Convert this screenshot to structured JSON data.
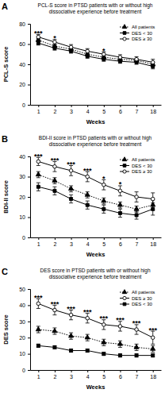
{
  "chart_data": [
    {
      "type": "line",
      "panel_label": "A",
      "title": "PCL-S score in PTSD patients with or without high dissociative experience before treatment",
      "x_label": "Weeks",
      "y_label": "PCL-S score",
      "categories": [
        "1",
        "2",
        "3",
        "4",
        "5",
        "6",
        "7",
        "18"
      ],
      "ylim": [
        0,
        80
      ],
      "yticks": [
        0,
        20,
        40,
        60,
        80
      ],
      "legend": "top-right",
      "series": [
        {
          "name": "All patients",
          "color": "#000000",
          "marker": "triangle",
          "line_style": "dotted",
          "values": [
            64,
            58,
            55,
            50,
            47,
            45,
            44,
            40
          ],
          "errors": [
            1.5,
            1.5,
            1.5,
            1.5,
            1.5,
            1.5,
            1.5,
            2
          ]
        },
        {
          "name": "DES < 30",
          "color": "#000000",
          "marker": "square",
          "line_style": "solid",
          "values": [
            61,
            56,
            53,
            48,
            45,
            43,
            42,
            38
          ],
          "errors": [
            2,
            2,
            2,
            2,
            2,
            2,
            2,
            2.5
          ]
        },
        {
          "name": "DES ≥ 30",
          "color": "#000000",
          "marker": "circle-open",
          "line_style": "solid",
          "values": [
            67,
            62,
            57,
            53,
            50,
            47,
            45,
            42
          ],
          "errors": [
            2.5,
            2.5,
            2.5,
            2.5,
            2.5,
            2.5,
            2.5,
            3
          ]
        }
      ],
      "annotations": [
        {
          "x": "1",
          "text": "***"
        },
        {
          "x": "2",
          "text": "*"
        },
        {
          "x": "5",
          "text": "*"
        }
      ]
    },
    {
      "type": "line",
      "panel_label": "B",
      "title": "BDI-II score in PTSD patients with or without high dissociative experience before treatment",
      "x_label": "Weeks",
      "y_label": "BDI-II score",
      "categories": [
        "1",
        "2",
        "3",
        "4",
        "5",
        "6",
        "7",
        "18"
      ],
      "ylim": [
        0,
        40
      ],
      "yticks": [
        0,
        10,
        20,
        30,
        40
      ],
      "legend": "top-right",
      "series": [
        {
          "name": "All patients",
          "color": "#000000",
          "marker": "triangle",
          "line_style": "dotted",
          "values": [
            31,
            28,
            24,
            21,
            18,
            16,
            14,
            16
          ],
          "errors": [
            1.5,
            1.5,
            1.5,
            1.5,
            1.5,
            1.5,
            1.5,
            2.5
          ]
        },
        {
          "name": "DES < 30",
          "color": "#000000",
          "marker": "square",
          "line_style": "solid",
          "values": [
            25,
            23,
            19,
            16,
            14,
            12,
            11,
            14
          ],
          "errors": [
            2,
            2,
            2,
            2,
            2,
            2,
            2,
            3
          ]
        },
        {
          "name": "DES ≥ 30",
          "color": "#000000",
          "marker": "circle-open",
          "line_style": "solid",
          "values": [
            37.5,
            35,
            33,
            30,
            26,
            23,
            20,
            19
          ],
          "errors": [
            2,
            2.5,
            2.5,
            2.5,
            2.5,
            2.5,
            2.5,
            3
          ]
        }
      ],
      "annotations": [
        {
          "x": "1",
          "text": "***"
        },
        {
          "x": "2",
          "text": "***"
        },
        {
          "x": "3",
          "text": "***"
        },
        {
          "x": "4",
          "text": "***"
        },
        {
          "x": "5",
          "text": "*"
        },
        {
          "x": "6",
          "text": "*"
        }
      ]
    },
    {
      "type": "line",
      "panel_label": "C",
      "title": "DES score in PTSD patients with or without high dissociative experience before treatment",
      "x_label": "Weeks",
      "y_label": "DES score",
      "categories": [
        "1",
        "2",
        "3",
        "4",
        "5",
        "6",
        "7",
        "18"
      ],
      "ylim": [
        0,
        50
      ],
      "yticks": [
        0,
        10,
        20,
        30,
        40,
        50
      ],
      "legend": "top-right",
      "series": [
        {
          "name": "All patients",
          "color": "#000000",
          "marker": "triangle",
          "line_style": "dotted",
          "values": [
            25,
            24,
            21,
            20,
            17,
            16,
            14,
            13
          ],
          "errors": [
            2,
            2,
            2,
            2,
            2,
            2,
            2,
            2
          ]
        },
        {
          "name": "DES ≥ 30",
          "color": "#000000",
          "marker": "circle-open",
          "line_style": "solid",
          "values": [
            41,
            37,
            34,
            32,
            28,
            27,
            25,
            20
          ],
          "errors": [
            3,
            3,
            3,
            3,
            3,
            3,
            3,
            4
          ]
        },
        {
          "name": "DES < 30",
          "color": "#000000",
          "marker": "square",
          "line_style": "solid",
          "values": [
            15,
            14,
            12,
            12,
            10,
            9,
            9,
            9
          ],
          "errors": [
            1,
            1,
            1,
            1,
            1,
            1,
            1,
            1
          ]
        }
      ],
      "annotations": [
        {
          "x": "1",
          "text": "***"
        },
        {
          "x": "2",
          "text": "***"
        },
        {
          "x": "3",
          "text": "***"
        },
        {
          "x": "4",
          "text": "***"
        },
        {
          "x": "5",
          "text": "***"
        },
        {
          "x": "6",
          "text": "***"
        },
        {
          "x": "7",
          "text": "***"
        },
        {
          "x": "18",
          "text": "***"
        }
      ]
    }
  ]
}
